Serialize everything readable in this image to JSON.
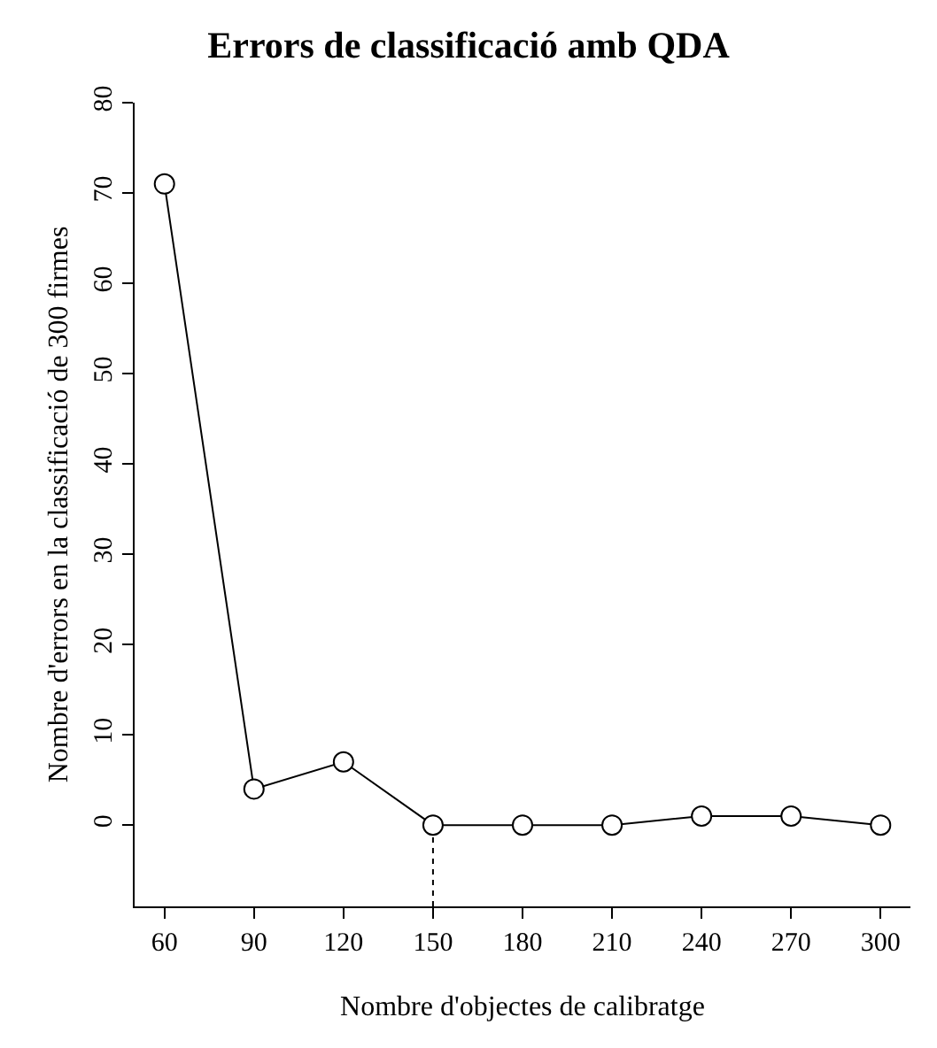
{
  "chart_data": {
    "type": "line",
    "title": "Errors de classificació amb QDA",
    "xlabel": "Nombre d'objectes de calibratge",
    "ylabel": "Nombre d'errors en la classificació de 300 firmes",
    "x": [
      60,
      90,
      120,
      150,
      180,
      210,
      240,
      270,
      300
    ],
    "series": [
      {
        "color": "#000000",
        "values": [
          71,
          4,
          7,
          0,
          0,
          0,
          1,
          1,
          0
        ]
      }
    ],
    "xlim": [
      50,
      310
    ],
    "xticks": [
      60,
      90,
      120,
      150,
      180,
      210,
      240,
      270,
      300
    ],
    "ylim": [
      -9,
      80
    ],
    "yticks": [
      0,
      10,
      20,
      30,
      40,
      50,
      60,
      70,
      80
    ],
    "ref_lines": [
      {
        "axis": "x",
        "value": 150,
        "color": "#000000",
        "line_style": "dotted"
      }
    ],
    "grid": false,
    "marker": "circle",
    "line_style": "solid"
  }
}
